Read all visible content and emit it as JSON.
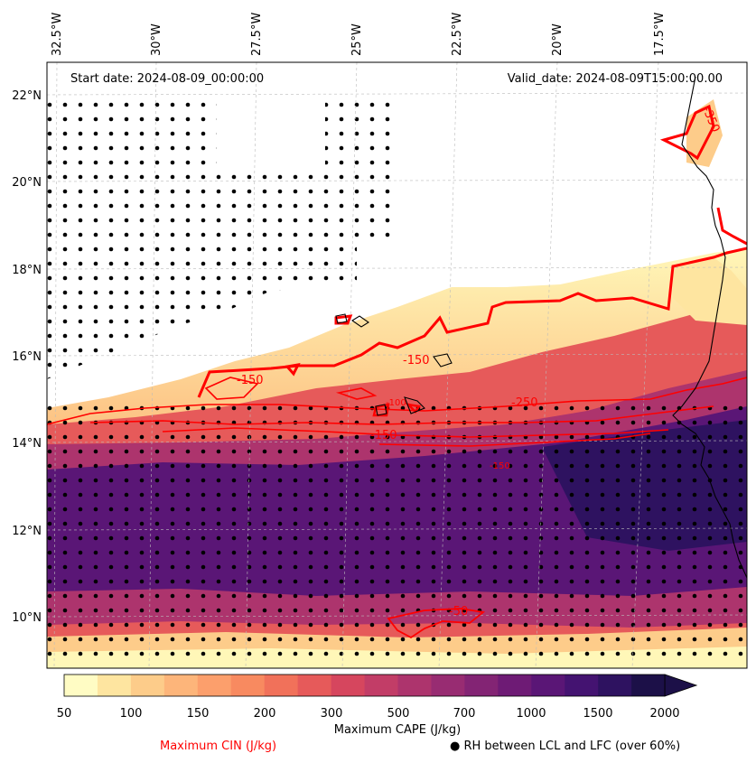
{
  "header": {
    "start_date": "Start date: 2024-08-09_00:00:00",
    "valid_date": "Valid_date: 2024-08-09T15:00:00.00"
  },
  "axes": {
    "lon_ticks": [
      "32.5°W",
      "30°W",
      "27.5°W",
      "25°W",
      "22.5°W",
      "20°W",
      "17.5°W"
    ],
    "lat_ticks": [
      "22°N",
      "20°N",
      "18°N",
      "16°N",
      "14°N",
      "12°N",
      "10°N"
    ],
    "lon_range_deg_west": [
      33.2,
      15.8
    ],
    "lat_range_deg_north": [
      8.9,
      22.8
    ]
  },
  "colorbar": {
    "title": "Maximum CAPE (J/kg)",
    "tick_labels": [
      "50",
      "100",
      "150",
      "200",
      "300",
      "500",
      "700",
      "1000",
      "1500",
      "2000"
    ],
    "colors": [
      "#fffcc4",
      "#fee5a0",
      "#fdcc8a",
      "#fdb57a",
      "#fc9f6c",
      "#f88a60",
      "#f1715a",
      "#e65a5a",
      "#d6465e",
      "#c23d67",
      "#ad346d",
      "#982c72",
      "#832474",
      "#6e1b75",
      "#5a1676",
      "#441371",
      "#2e1260",
      "#1c1048"
    ]
  },
  "contours": {
    "color": "#ff0000",
    "labels": [
      "-150",
      "-150",
      "-150",
      "-250",
      "-100",
      "-150",
      "-50",
      "-350"
    ]
  },
  "legend": {
    "cin": "Maximum CIN (J/kg)",
    "rh": "● RH between LCL and LFC (over 60%)"
  }
}
